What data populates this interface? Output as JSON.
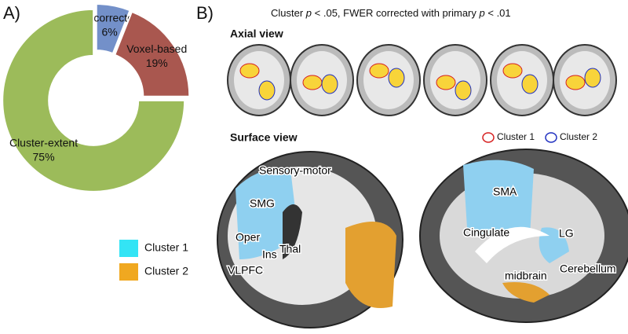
{
  "chart_data": {
    "type": "pie",
    "panel_label": "A)",
    "categories": [
      "Uncorrected",
      "Voxel-based",
      "Cluster-extent"
    ],
    "values": [
      6,
      19,
      75
    ],
    "value_labels": [
      "6%",
      "19%",
      "75%"
    ],
    "colors": [
      "#7390c9",
      "#a9574f",
      "#9cbb5a"
    ]
  },
  "panel_b": {
    "panel_label": "B)",
    "title_parts": [
      "Cluster ",
      "p",
      " < .05, FWER corrected with primary ",
      "p",
      " < .01"
    ],
    "axial_heading": "Axial view",
    "surface_heading": "Surface view",
    "outline_legend": [
      {
        "label": "Cluster 1",
        "color": "#d62020"
      },
      {
        "label": "Cluster 2",
        "color": "#2030c0"
      }
    ],
    "fill_legend": [
      {
        "label": "Cluster 1",
        "color": "#33e4f5"
      },
      {
        "label": "Cluster 2",
        "color": "#f0a820"
      }
    ],
    "left_labels": [
      "Sensory-motor",
      "SMG",
      "Oper",
      "Ins",
      "Thal",
      "VLPFC"
    ],
    "right_labels": [
      "SMA",
      "Cingulate",
      "LG",
      "Cerebellum",
      "midbrain"
    ]
  }
}
